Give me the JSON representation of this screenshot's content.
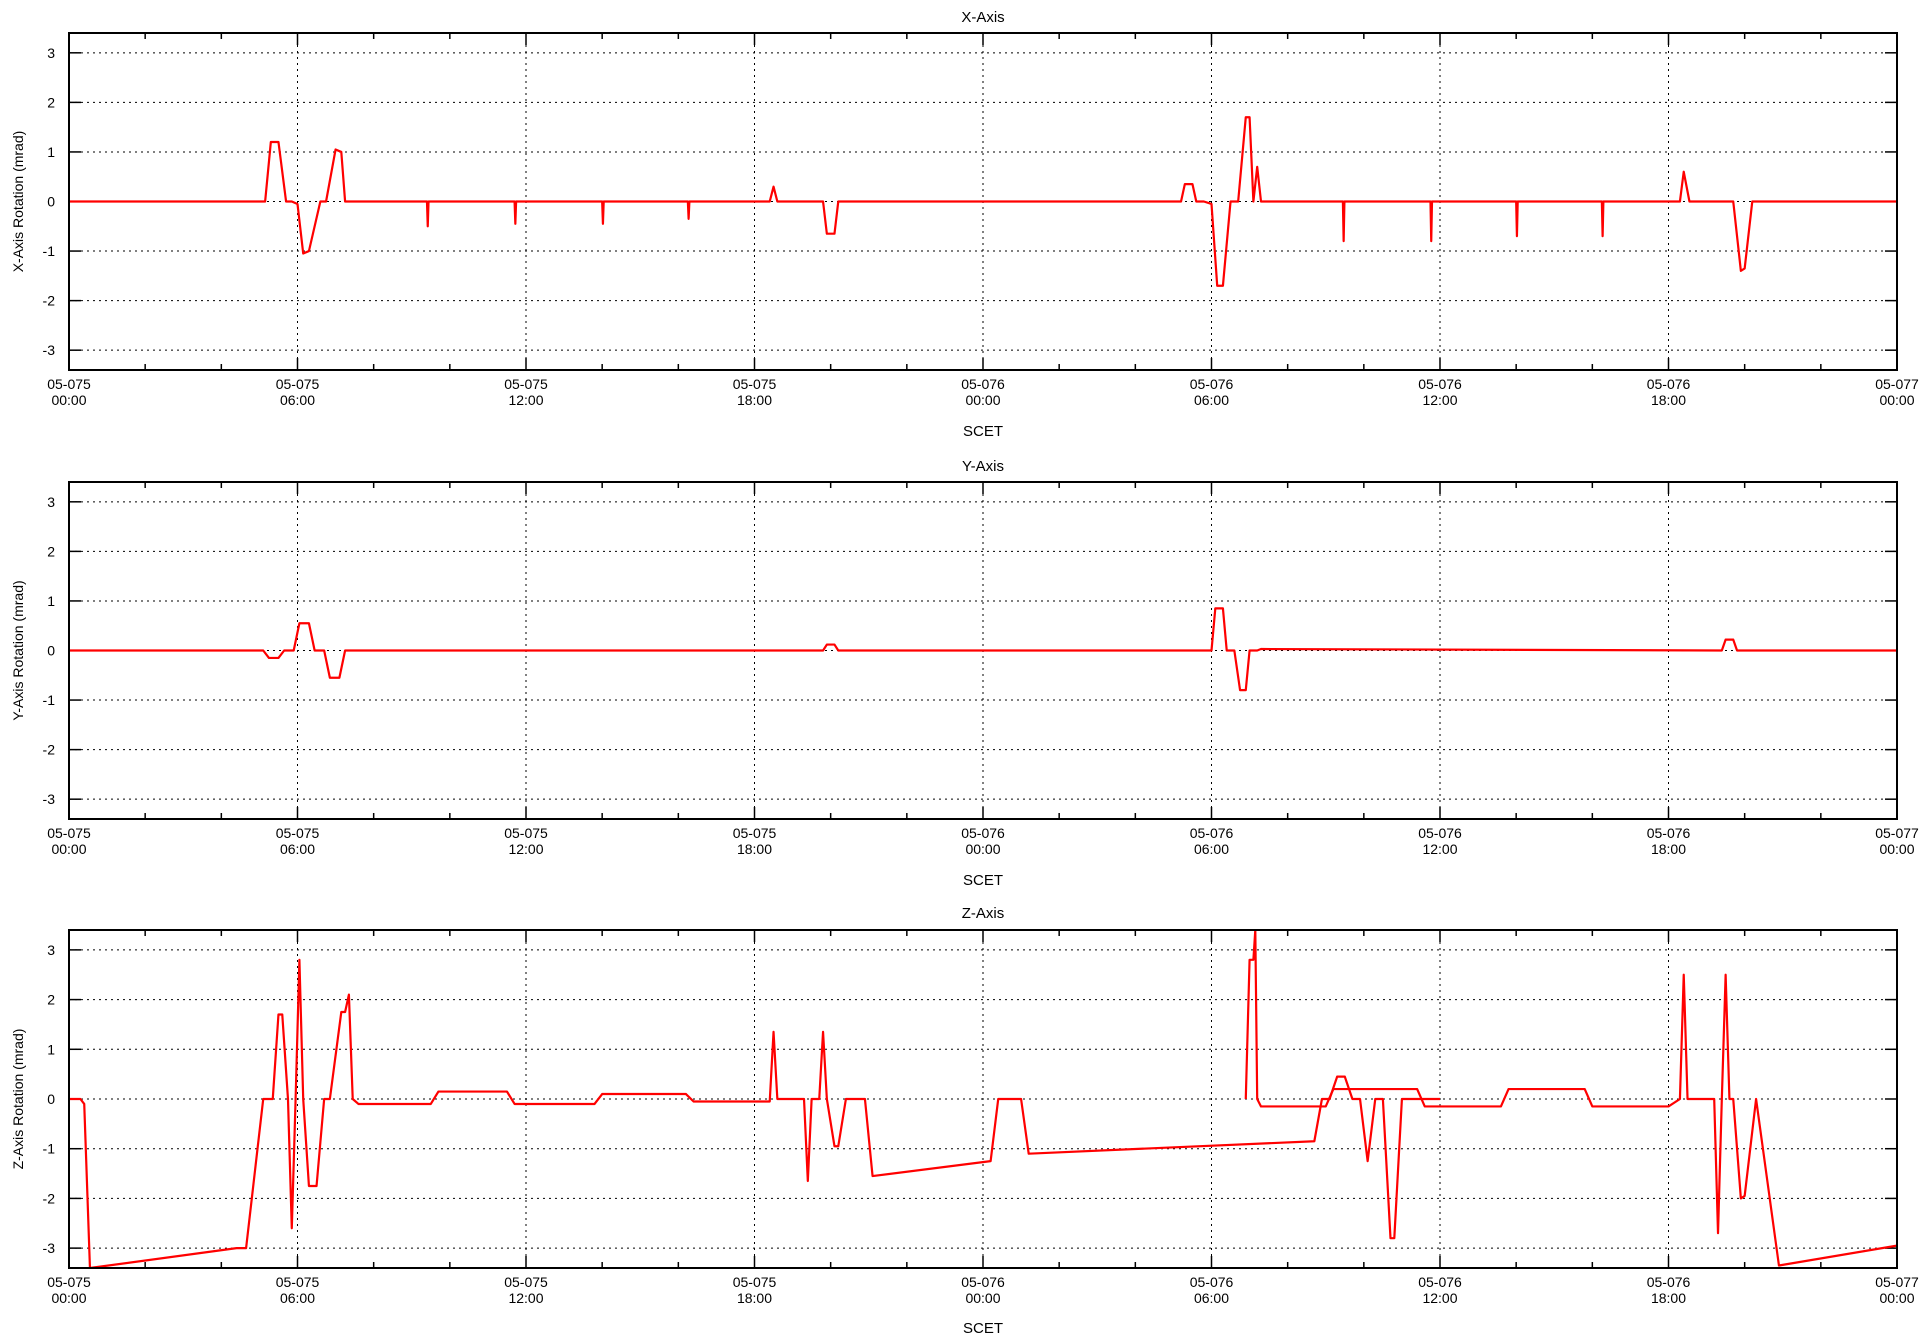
{
  "chart_data": [
    {
      "type": "line",
      "title": "X-Axis",
      "xlabel": "SCET",
      "ylabel": "X-Axis Rotation (mrad)",
      "xlim_hours": [
        0,
        48
      ],
      "ylim": [
        -3.4,
        3.4
      ],
      "y_ticks": [
        3,
        2,
        1,
        0,
        -1,
        -2,
        -3
      ],
      "x_tick_labels": [
        [
          "05-075",
          "00:00"
        ],
        [
          "05-075",
          "06:00"
        ],
        [
          "05-075",
          "12:00"
        ],
        [
          "05-075",
          "18:00"
        ],
        [
          "05-076",
          "00:00"
        ],
        [
          "05-076",
          "06:00"
        ],
        [
          "05-076",
          "12:00"
        ],
        [
          "05-076",
          "18:00"
        ],
        [
          "05-077",
          "00:00"
        ]
      ],
      "grid": true,
      "series_color": "#ff0000",
      "series": [
        {
          "x": [
            0,
            5.15,
            5.3,
            5.5,
            5.7,
            5.85,
            6.0,
            6.15,
            6.3,
            6.6,
            6.75,
            7.0,
            7.15,
            7.25,
            7.4,
            9.4,
            9.42,
            9.44,
            11.7,
            11.72,
            11.74,
            14.0,
            14.02,
            14.04,
            16.25,
            16.27,
            16.29,
            18.4,
            18.5,
            18.6,
            19.8,
            19.9,
            20.1,
            20.2,
            20.4,
            29.2,
            29.3,
            29.5,
            29.6,
            29.8,
            30.0,
            30.15,
            30.3,
            30.5,
            30.7,
            30.9,
            31.0,
            31.1,
            31.2,
            31.3,
            33.45,
            33.47,
            33.49,
            35.75,
            35.77,
            35.79,
            38.0,
            38.02,
            38.04,
            40.25,
            40.27,
            40.29,
            42.3,
            42.4,
            42.55,
            43.5,
            43.7,
            43.9,
            44.0,
            44.2,
            48
          ],
          "y": [
            0,
            0,
            1.2,
            1.2,
            0,
            0,
            -0.05,
            -1.05,
            -1.0,
            0,
            0,
            1.05,
            1.0,
            0,
            0,
            0,
            -0.5,
            0,
            0,
            -0.45,
            0,
            0,
            -0.45,
            0,
            0,
            -0.35,
            0,
            0,
            0.3,
            0,
            0,
            -0.65,
            -0.65,
            0,
            0,
            0,
            0.35,
            0.35,
            0,
            0,
            -0.05,
            -1.7,
            -1.7,
            0,
            0,
            1.7,
            1.7,
            0,
            0.7,
            0,
            0,
            -0.8,
            0,
            0,
            -0.8,
            0,
            0,
            -0.7,
            0,
            0,
            -0.7,
            0,
            0,
            0.6,
            0,
            0,
            0,
            -1.4,
            -1.35,
            0,
            0
          ]
        }
      ]
    },
    {
      "type": "line",
      "title": "Y-Axis",
      "xlabel": "SCET",
      "ylabel": "Y-Axis Rotation (mrad)",
      "xlim_hours": [
        0,
        48
      ],
      "ylim": [
        -3.4,
        3.4
      ],
      "y_ticks": [
        3,
        2,
        1,
        0,
        -1,
        -2,
        -3
      ],
      "x_tick_labels": [
        [
          "05-075",
          "00:00"
        ],
        [
          "05-075",
          "06:00"
        ],
        [
          "05-075",
          "12:00"
        ],
        [
          "05-075",
          "18:00"
        ],
        [
          "05-076",
          "00:00"
        ],
        [
          "05-076",
          "06:00"
        ],
        [
          "05-076",
          "12:00"
        ],
        [
          "05-076",
          "18:00"
        ],
        [
          "05-077",
          "00:00"
        ]
      ],
      "grid": true,
      "series_color": "#ff0000",
      "series": [
        {
          "x": [
            0,
            5.1,
            5.25,
            5.5,
            5.65,
            5.9,
            6.05,
            6.3,
            6.45,
            6.7,
            6.85,
            7.1,
            7.25,
            19.8,
            19.9,
            20.1,
            20.2,
            30.0,
            30.1,
            30.3,
            30.4,
            30.6,
            30.75,
            30.9,
            31.0,
            31.2,
            31.3,
            43.4,
            43.5,
            43.7,
            43.8,
            48
          ],
          "y": [
            0,
            0,
            -0.15,
            -0.15,
            0,
            0,
            0.55,
            0.55,
            0,
            0,
            -0.55,
            -0.55,
            0,
            0,
            0.12,
            0.12,
            0,
            0,
            0.85,
            0.85,
            0,
            0,
            -0.8,
            -0.8,
            0,
            0,
            0.03,
            0,
            0.22,
            0.22,
            0,
            0
          ]
        }
      ]
    },
    {
      "type": "line",
      "title": "Z-Axis",
      "xlabel": "SCET",
      "ylabel": "Z-Axis Rotation (mrad)",
      "xlim_hours": [
        0,
        48
      ],
      "ylim": [
        -3.4,
        3.4
      ],
      "y_ticks": [
        3,
        2,
        1,
        0,
        -1,
        -2,
        -3
      ],
      "x_tick_labels": [
        [
          "05-075",
          "00:00"
        ],
        [
          "05-075",
          "06:00"
        ],
        [
          "05-075",
          "12:00"
        ],
        [
          "05-075",
          "18:00"
        ],
        [
          "05-076",
          "00:00"
        ],
        [
          "05-076",
          "06:00"
        ],
        [
          "05-076",
          "12:00"
        ],
        [
          "05-076",
          "18:00"
        ],
        [
          "05-077",
          "00:00"
        ]
      ],
      "grid": true,
      "series_color": "#ff0000",
      "series": [
        {
          "x": [
            0,
            0.3,
            0.4,
            0.55,
            4.4,
            4.65,
            5.1,
            5.2,
            5.35,
            5.5,
            5.6,
            5.75,
            5.85,
            5.95,
            6.05,
            6.15,
            6.3,
            6.5,
            6.7,
            6.85,
            7.15,
            7.25,
            7.35,
            7.45,
            7.6,
            9.5,
            9.7,
            11.5,
            11.7,
            13.8,
            14.0,
            16.2,
            16.4,
            18.4,
            18.5,
            18.6,
            19.3,
            19.4,
            19.5,
            19.7,
            19.8,
            19.9,
            20.1,
            20.2,
            20.4,
            20.9,
            21.1,
            24.2,
            24.4,
            25.0,
            25.2,
            32.7,
            32.9,
            33.1,
            33.3,
            33.5,
            33.7,
            33.9,
            34.1,
            34.3,
            34.5,
            34.7,
            34.8,
            35.0,
            35.1,
            35.3,
            35.5,
            35.65,
            35.8,
            36.0
          ],
          "y": [
            0,
            0,
            -0.1,
            -3.4,
            -3.0,
            -3.0,
            0,
            0,
            0,
            1.7,
            1.7,
            0,
            -2.6,
            0,
            2.8,
            0,
            -1.75,
            -1.75,
            0,
            0,
            1.75,
            1.75,
            2.1,
            0,
            -0.1,
            -0.1,
            0.15,
            0.15,
            -0.1,
            -0.1,
            0.1,
            0.1,
            -0.05,
            -0.05,
            1.35,
            0,
            0,
            -1.65,
            0,
            0,
            1.35,
            0,
            -0.95,
            -0.95,
            0,
            0,
            -1.55,
            -1.25,
            0,
            0,
            -1.1,
            -0.85,
            0,
            0,
            0.45,
            0.45,
            0,
            0,
            -1.25,
            0,
            0,
            -2.8,
            -2.8,
            0,
            0,
            0,
            0,
            0,
            0,
            0
          ]
        },
        {
          "x": [
            30.9,
            31.0,
            31.1,
            31.15,
            31.2,
            31.3,
            33.0,
            33.2,
            35.4,
            35.6,
            37.6,
            37.8,
            39.8,
            40.0,
            42.0,
            42.3,
            42.4,
            42.5,
            43.2,
            43.3,
            43.4,
            43.5,
            43.6,
            43.7,
            43.9,
            44.0,
            44.3,
            44.9,
            48
          ],
          "y": [
            0,
            2.8,
            2.8,
            3.4,
            0,
            -0.15,
            -0.15,
            0.2,
            0.2,
            -0.15,
            -0.15,
            0.2,
            0.2,
            -0.15,
            -0.15,
            0,
            2.5,
            0,
            0,
            -2.7,
            0,
            2.5,
            0,
            0,
            -2.0,
            -1.95,
            0,
            -3.35,
            -2.95
          ]
        }
      ]
    }
  ]
}
